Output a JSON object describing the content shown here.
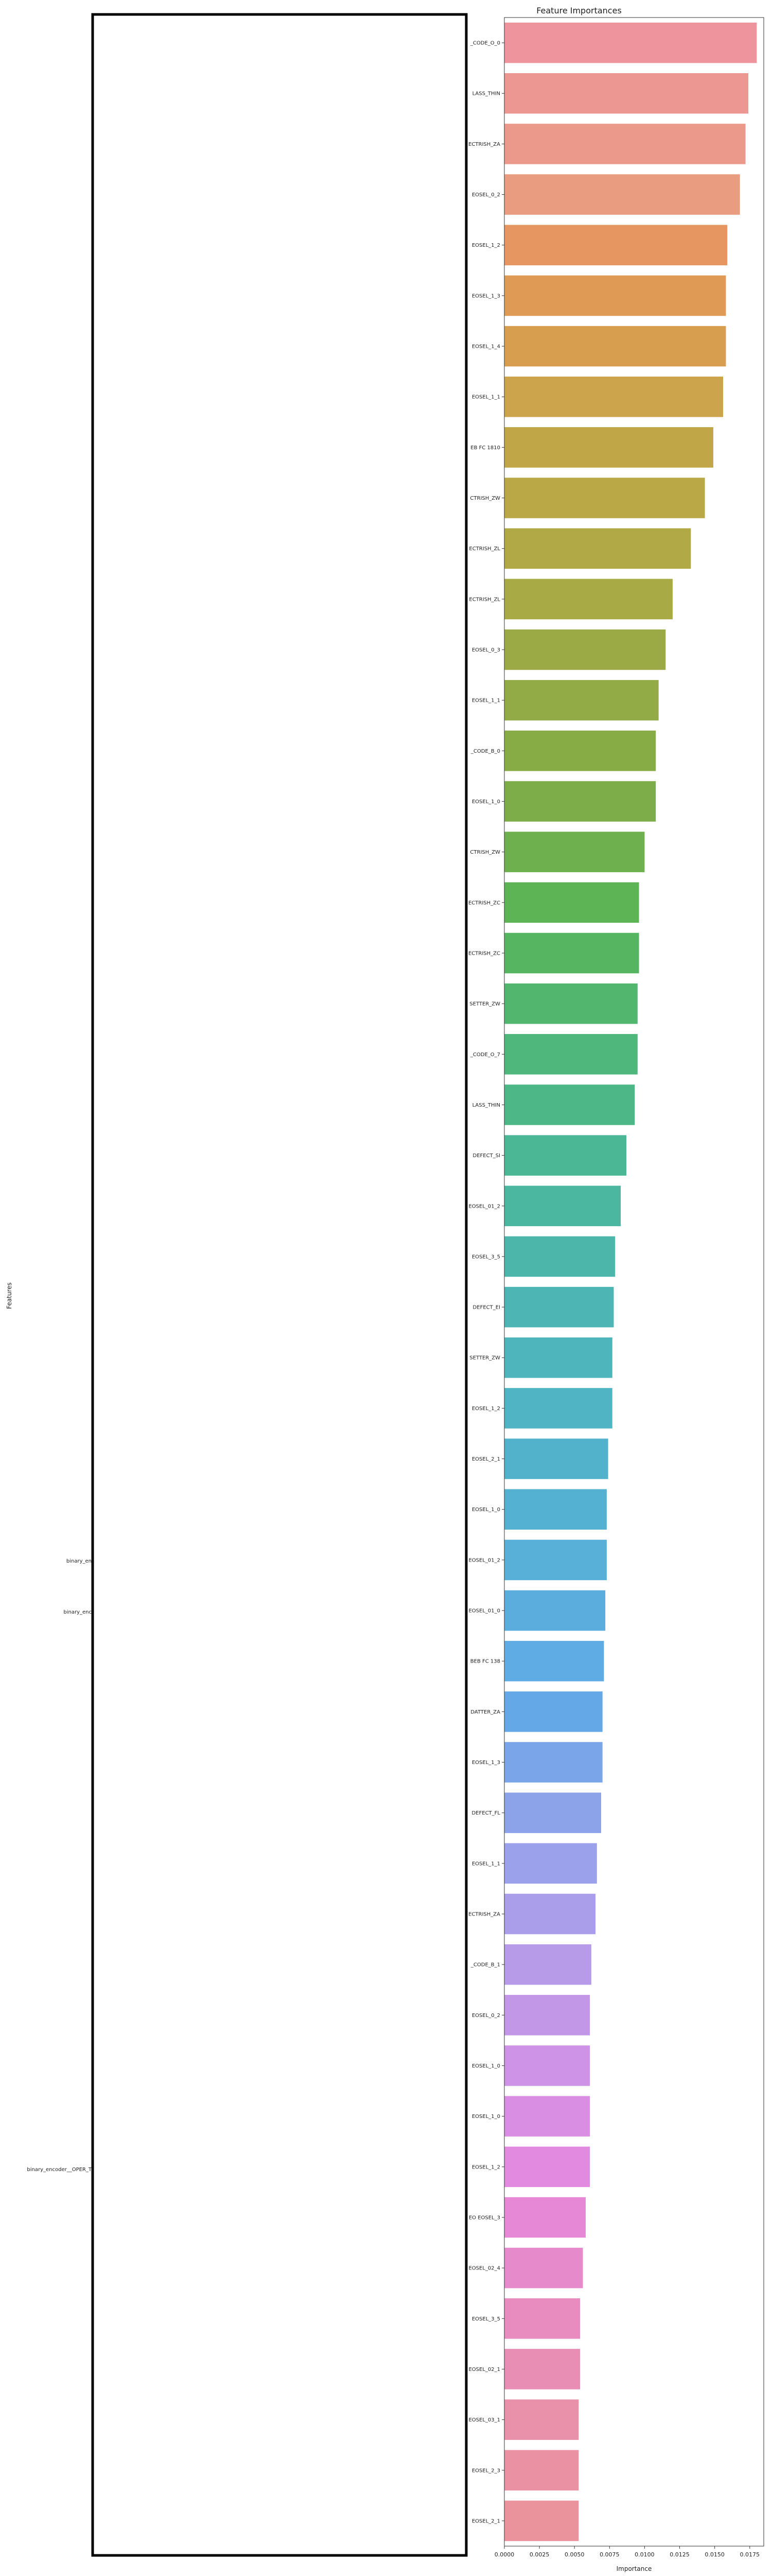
{
  "chart_data": {
    "type": "bar",
    "orientation": "horizontal",
    "title": "Feature Importances",
    "xlabel": "Importance",
    "ylabel": "Features",
    "xlim": [
      0,
      0.0185
    ],
    "xticks": [
      0.0,
      0.0025,
      0.005,
      0.0075,
      0.01,
      0.0125,
      0.015,
      0.0175
    ],
    "xtick_labels": [
      "0.0000",
      "0.0025",
      "0.0050",
      "0.0075",
      "0.0100",
      "0.0125",
      "0.0150",
      "0.0175"
    ],
    "grid": false,
    "legend": "none",
    "categories": [
      "_CODE_O_0",
      "LASS_THIN",
      "ECTRISH_ZA",
      "EOSEL_0_2",
      "EOSEL_1_2",
      "EOSEL_1_3",
      "EOSEL_1_4",
      "EOSEL_1_1",
      "EB FC 1810",
      "CTRISH_ZW",
      "ECTRISH_ZL",
      "ECTRISH_ZL",
      "EOSEL_0_3",
      "EOSEL_1_1",
      "_CODE_B_0",
      "EOSEL_1_0",
      "CTRISH_ZW",
      "ECTRISH_ZC",
      "ECTRISH_ZC",
      "SETTER_ZW",
      "_CODE_O_7",
      "LASS_THIN",
      "DEFECT_SI",
      "EOSEL_01_2",
      "EOSEL_3_5",
      "DEFECT_EI",
      "SETTER_ZW",
      "EOSEL_1_2",
      "EOSEL_2_1",
      "EOSEL_1_0",
      "EOSEL_01_2",
      "EOSEL_01_0",
      "BEB FC 138",
      "DATTER_ZA",
      "EOSEL_1_3",
      "DEFECT_FL",
      "EOSEL_1_1",
      "ECTRISH_ZA",
      "_CODE_B_1",
      "EOSEL_0_2",
      "EOSEL_1_0",
      "EOSEL_1_0",
      "EOSEL_1_2",
      "EO EOSEL_3",
      "EOSEL_02_4",
      "EOSEL_3_5",
      "EOSEL_02_1",
      "EOSEL_03_1",
      "EOSEL_2_3",
      "EOSEL_2_1"
    ],
    "values": [
      0.018,
      0.0174,
      0.0172,
      0.0168,
      0.0159,
      0.0158,
      0.0158,
      0.0156,
      0.0149,
      0.0143,
      0.0133,
      0.012,
      0.0115,
      0.011,
      0.0108,
      0.0108,
      0.01,
      0.0096,
      0.0096,
      0.0095,
      0.0095,
      0.0093,
      0.0087,
      0.0083,
      0.0079,
      0.0078,
      0.0077,
      0.0077,
      0.0074,
      0.0073,
      0.0073,
      0.0072,
      0.0071,
      0.007,
      0.007,
      0.0069,
      0.0066,
      0.0065,
      0.0062,
      0.0061,
      0.0061,
      0.0061,
      0.0061,
      0.0058,
      0.0056,
      0.0054,
      0.0054,
      0.0053,
      0.0053,
      0.0053
    ],
    "colors": [
      "#ee949d",
      "#ed9793",
      "#eb998a",
      "#e99c7f",
      "#e59661",
      "#df9a56",
      "#d89e50",
      "#cca44b",
      "#c0a647",
      "#b9a845",
      "#b1a945",
      "#a7aa45",
      "#9caa46",
      "#92ab46",
      "#87ac46",
      "#7dad49",
      "#6fb04e",
      "#5cb454",
      "#55b561",
      "#52b66f",
      "#4fb77c",
      "#4db788",
      "#4cb795",
      "#4cb7a0",
      "#4cb6ab",
      "#4db6b5",
      "#4fb5bd",
      "#51b4c4",
      "#53b2cb",
      "#55b1d1",
      "#58afd7",
      "#5badde",
      "#5fabe3",
      "#65a8e8",
      "#7aa5e9",
      "#8ca3ea",
      "#9ba1ea",
      "#aa9eea",
      "#b79be9",
      "#c397e8",
      "#ce93e6",
      "#d98ee3",
      "#e28ae0",
      "#e688d6",
      "#e78acb",
      "#e88cbf",
      "#e88eb5",
      "#e990ab",
      "#ea92a3",
      "#eb939c"
    ]
  },
  "left_panel": {
    "labels": [
      "binary_en",
      "binary_enc",
      "binary_encoder__OPER_T"
    ]
  }
}
